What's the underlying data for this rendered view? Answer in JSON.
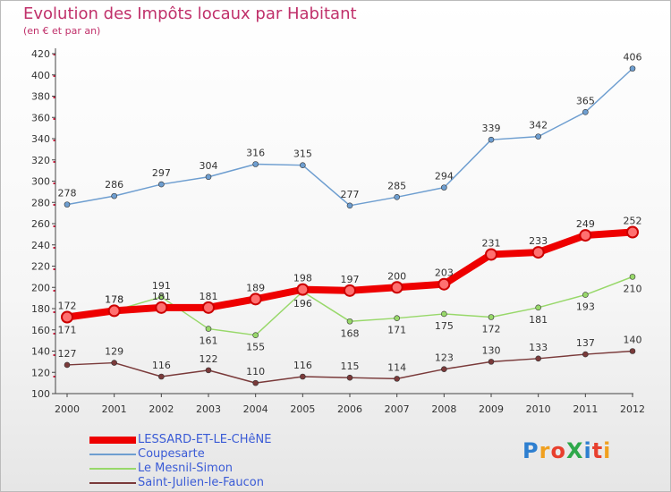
{
  "title": "Evolution des Impôts locaux par Habitant",
  "subtitle": "(en € et par an)",
  "logo": {
    "text": "ProXiti",
    "letter_colors": [
      "#2e7fd0",
      "#f0a020",
      "#e8402e",
      "#2ea84a",
      "#2e7fd0",
      "#e8402e",
      "#f0a020"
    ]
  },
  "chart_data": {
    "type": "line",
    "x": [
      "2000",
      "2001",
      "2002",
      "2003",
      "2004",
      "2005",
      "2006",
      "2007",
      "2008",
      "2009",
      "2010",
      "2011",
      "2012"
    ],
    "ylim": [
      100,
      420
    ],
    "yticks": [
      100,
      120,
      140,
      160,
      180,
      200,
      220,
      240,
      260,
      280,
      300,
      320,
      340,
      360,
      380,
      400,
      420
    ],
    "grid": false,
    "legend_position": "bottom-left",
    "series": [
      {
        "name": "LESSARD-ET-LE-CHêNE",
        "color": "#ee0000",
        "width": 8,
        "values": [
          172,
          178,
          181,
          181,
          189,
          198,
          197,
          200,
          203,
          231,
          233,
          249,
          252
        ]
      },
      {
        "name": "Coupesarte",
        "color": "#6e9ed0",
        "width": 1.5,
        "values": [
          278,
          286,
          297,
          304,
          316,
          315,
          277,
          285,
          294,
          339,
          342,
          365,
          406
        ]
      },
      {
        "name": "Le Mesnil-Simon",
        "color": "#98d86a",
        "width": 1.5,
        "values": [
          171,
          178,
          191,
          161,
          155,
          196,
          168,
          171,
          175,
          172,
          181,
          193,
          210
        ]
      },
      {
        "name": "Saint-Julien-le-Faucon",
        "color": "#7a3a3a",
        "width": 1.5,
        "values": [
          127,
          129,
          116,
          122,
          110,
          116,
          115,
          114,
          123,
          130,
          133,
          137,
          140
        ]
      }
    ]
  }
}
